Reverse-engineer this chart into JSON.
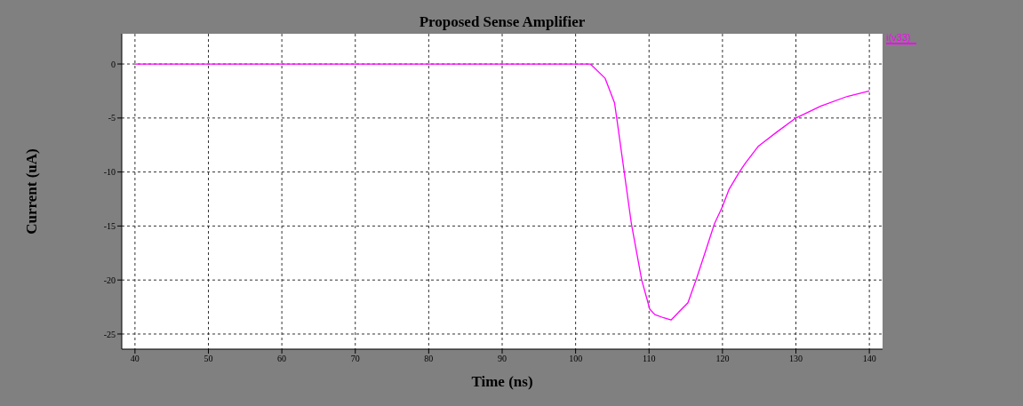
{
  "chart_data": {
    "type": "line",
    "title": "Proposed Sense Amplifier",
    "xlabel": "Time (ns)",
    "ylabel": "Current (uA)",
    "xlim": [
      38.2,
      141.8
    ],
    "xticks": [
      40,
      50,
      60,
      70,
      80,
      90,
      100,
      110,
      120,
      130,
      140
    ],
    "ylim": [
      -26.4,
      2.8
    ],
    "yticks": [
      0,
      -5,
      -10,
      -15,
      -20,
      -25
    ],
    "grid": true,
    "legend": "top right",
    "line_style": "solid",
    "marker": "none",
    "series": [
      {
        "name": "i(v33)",
        "color": "#ff00ff",
        "x": [
          40,
          102,
          104,
          105.3,
          105.6,
          107.6,
          109,
          110.1,
          110.8,
          112,
          113,
          115.3,
          116.5,
          117.9,
          118.9,
          120,
          120.9,
          122.3,
          123.1,
          124.9,
          127.4,
          130,
          133.4,
          137,
          140
        ],
        "values": [
          0,
          0,
          -1.3,
          -3.6,
          -5,
          -14.8,
          -20,
          -22.7,
          -23.2,
          -23.5,
          -23.7,
          -22.1,
          -19.8,
          -16.9,
          -14.8,
          -13.2,
          -11.6,
          -10,
          -9.2,
          -7.6,
          -6.3,
          -5,
          -3.9,
          -3,
          -2.5
        ]
      }
    ]
  }
}
